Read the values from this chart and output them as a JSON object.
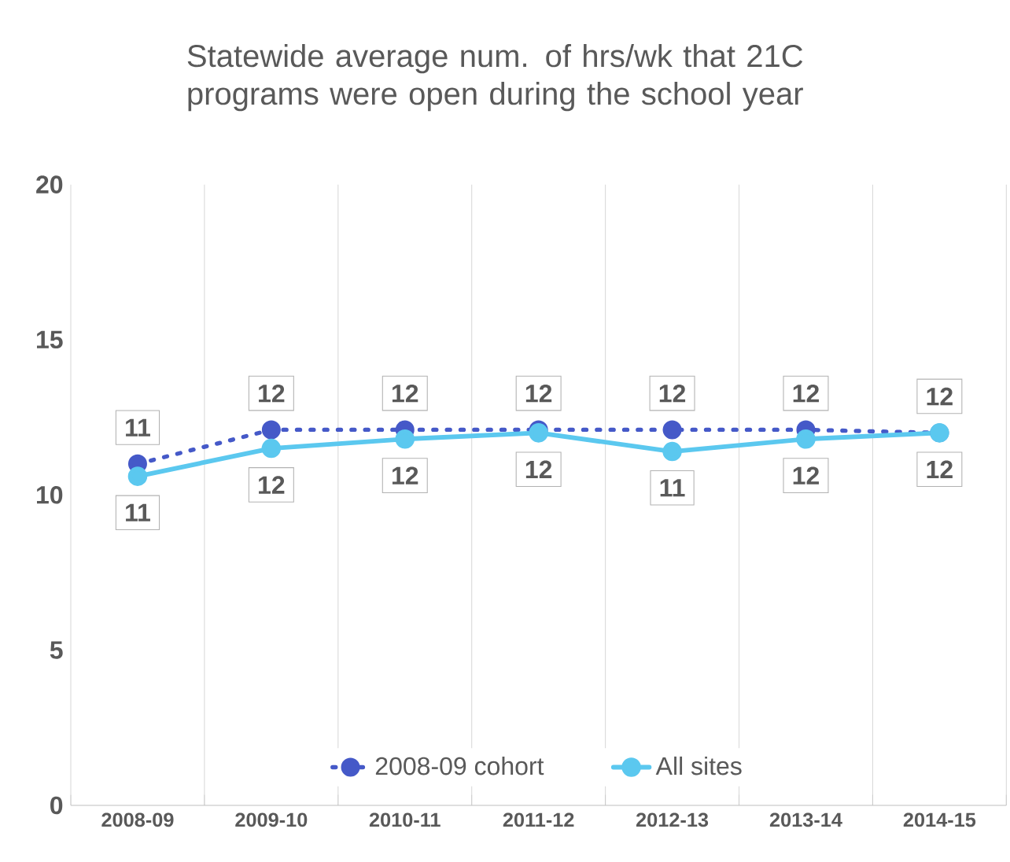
{
  "chart_data": {
    "type": "line",
    "title": "Statewide average num. of hrs/wk that 21C programs were open during the school year",
    "categories": [
      "2008-09",
      "2009-10",
      "2010-11",
      "2011-12",
      "2012-13",
      "2013-14",
      "2014-15"
    ],
    "series": [
      {
        "name": "2008-09 cohort",
        "color": "#4559c8",
        "line_style": "dotted",
        "values": [
          11.0,
          12.1,
          12.1,
          12.1,
          12.1,
          12.1,
          12.0
        ],
        "value_labels": [
          "11",
          "12",
          "12",
          "12",
          "12",
          "12",
          "12"
        ]
      },
      {
        "name": "All sites",
        "color": "#5bc8ef",
        "line_style": "solid",
        "values": [
          10.6,
          11.5,
          11.8,
          12.0,
          11.4,
          11.8,
          12.0
        ],
        "value_labels": [
          "11",
          "12",
          "12",
          "12",
          "11",
          "12",
          "12"
        ]
      }
    ],
    "ylim": [
      0,
      20
    ],
    "yticks": [
      0,
      5,
      10,
      15,
      20
    ],
    "grid": "x",
    "legend": "bottom",
    "marker": "circle"
  }
}
